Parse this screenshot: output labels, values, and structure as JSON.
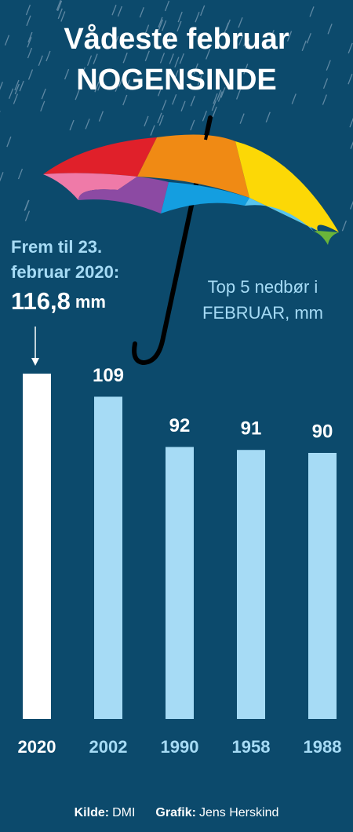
{
  "chart_data": {
    "type": "bar",
    "title": [
      "Vådeste februar",
      "NOGENSINDE"
    ],
    "annotation": [
      "Frem til 23.",
      "februar 2020:"
    ],
    "unit": "mm",
    "legend_label": [
      "Top 5 nedbør i",
      "FEBRUAR, mm"
    ],
    "categories": [
      "2020",
      "2002",
      "1990",
      "1958",
      "1988"
    ],
    "values": [
      116.8,
      109,
      92,
      91,
      90
    ],
    "value_labels": [
      "116,8",
      "109",
      "92",
      "91",
      "90"
    ],
    "colors": [
      "#ffffff",
      "#a6dbf5",
      "#a6dbf5",
      "#a6dbf5",
      "#a6dbf5"
    ],
    "ylim": [
      0,
      120
    ],
    "source": {
      "label": "Kilde:",
      "value": "DMI"
    },
    "credit": {
      "label": "Grafik:",
      "value": "Jens Herskind"
    }
  }
}
